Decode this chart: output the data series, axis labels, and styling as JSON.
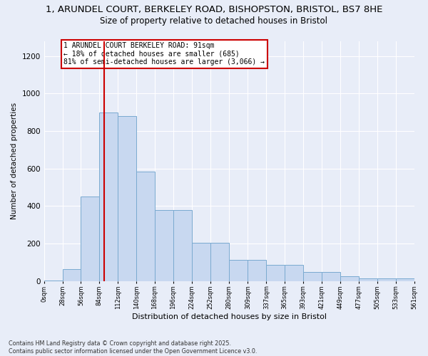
{
  "title_line1": "1, ARUNDEL COURT, BERKELEY ROAD, BISHOPSTON, BRISTOL, BS7 8HE",
  "title_line2": "Size of property relative to detached houses in Bristol",
  "xlabel": "Distribution of detached houses by size in Bristol",
  "ylabel": "Number of detached properties",
  "bar_color": "#c8d8f0",
  "bar_edge_color": "#7aaad0",
  "background_color": "#e8edf8",
  "grid_color": "#ffffff",
  "property_line_x": 91,
  "annotation_text": "1 ARUNDEL COURT BERKELEY ROAD: 91sqm\n← 18% of detached houses are smaller (685)\n81% of semi-detached houses are larger (3,066) →",
  "bin_edges": [
    0,
    28,
    56,
    84,
    112,
    140,
    168,
    196,
    224,
    252,
    280,
    309,
    337,
    365,
    393,
    421,
    449,
    477,
    505,
    533,
    561
  ],
  "bar_heights": [
    5,
    65,
    450,
    900,
    880,
    585,
    380,
    380,
    205,
    205,
    115,
    115,
    85,
    85,
    50,
    50,
    25,
    15,
    15,
    15
  ],
  "ylim": [
    0,
    1280
  ],
  "yticks": [
    0,
    200,
    400,
    600,
    800,
    1000,
    1200
  ],
  "footer_text": "Contains HM Land Registry data © Crown copyright and database right 2025.\nContains public sector information licensed under the Open Government Licence v3.0.",
  "annotation_box_color": "#ffffff",
  "annotation_box_edge": "#cc0000",
  "vline_color": "#cc0000"
}
